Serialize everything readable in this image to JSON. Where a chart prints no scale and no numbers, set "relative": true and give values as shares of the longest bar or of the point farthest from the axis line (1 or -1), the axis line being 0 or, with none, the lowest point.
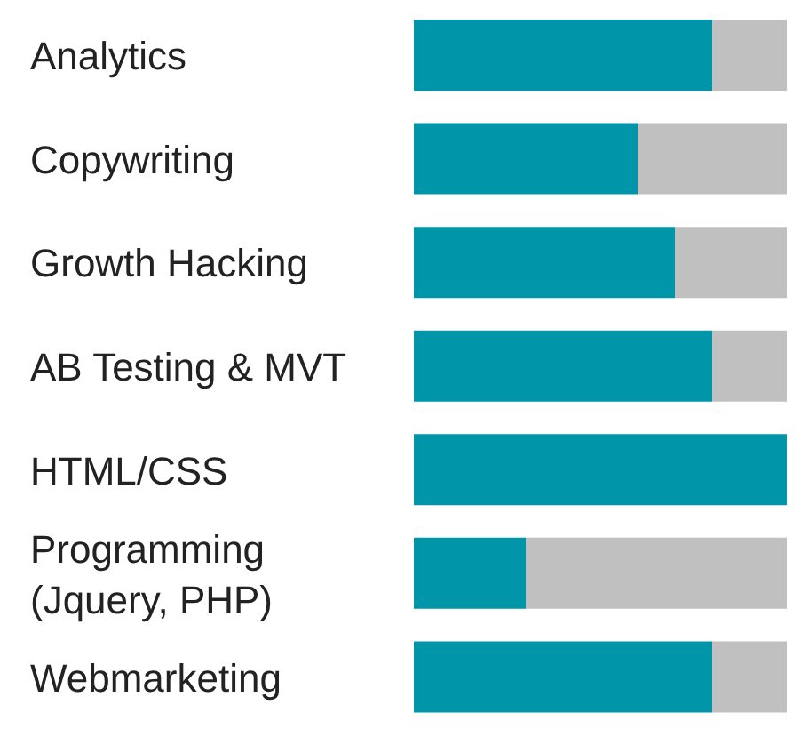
{
  "chart_data": {
    "type": "bar",
    "orientation": "horizontal",
    "stacked": true,
    "relative": true,
    "categories": [
      "Analytics",
      "Copywriting",
      "Growth Hacking",
      "AB Testing & MVT",
      "HTML/CSS",
      "Programming (Jquery, PHP)",
      "Webmarketing"
    ],
    "series": [
      {
        "color": "#0095a8",
        "values": [
          0.8,
          0.6,
          0.7,
          0.8,
          1,
          0.3,
          0.8
        ]
      },
      {
        "color": "#c0c0c0",
        "values": [
          0.2,
          0.4,
          0.3,
          0.2,
          0,
          0.7,
          0.2
        ]
      }
    ]
  }
}
